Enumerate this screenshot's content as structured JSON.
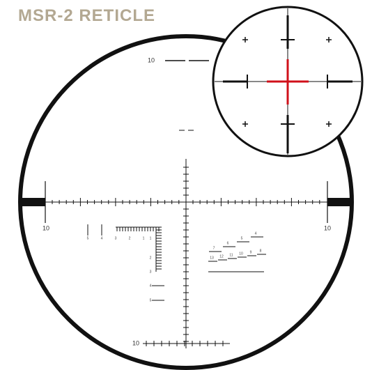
{
  "title": "MSR-2 RETICLE",
  "labels": {
    "top": "10",
    "left": "10",
    "right": "10",
    "bottom": "10"
  },
  "tree_top": [
    "5",
    "4",
    "3",
    "2",
    "1"
  ],
  "tree_side": [
    "1",
    "2",
    "3",
    "4",
    "5"
  ],
  "range_row1": [
    "7",
    "6",
    "5",
    "4"
  ],
  "range_row2": [
    "13",
    "12",
    "11",
    "10",
    "9",
    "8"
  ]
}
